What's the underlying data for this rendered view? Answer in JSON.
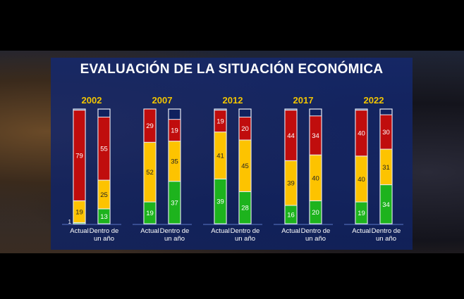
{
  "chart_data": {
    "type": "bar",
    "stacked": true,
    "title": "EVALUACIÓN DE LA SITUACIÓN ECONÓMICA",
    "groups": [
      "2002",
      "2007",
      "2012",
      "2017",
      "2022"
    ],
    "categories": [
      "Actual",
      "Dentro de un año"
    ],
    "category_label_lines": [
      [
        "Actual"
      ],
      [
        "Dentro de",
        "un año"
      ]
    ],
    "ylim": [
      0,
      100
    ],
    "colors": {
      "green": "#1db31d",
      "yellow": "#fdc300",
      "red": "#c00d0d",
      "empty": "#10215e",
      "title": "#ffffff",
      "year": "#f2c500"
    },
    "series": [
      {
        "color_key": "green",
        "values": [
          [
            1,
            13
          ],
          [
            19,
            37
          ],
          [
            39,
            28
          ],
          [
            16,
            20
          ],
          [
            19,
            34
          ]
        ]
      },
      {
        "color_key": "yellow",
        "values": [
          [
            19,
            25
          ],
          [
            52,
            35
          ],
          [
            41,
            45
          ],
          [
            39,
            40
          ],
          [
            40,
            31
          ]
        ]
      },
      {
        "color_key": "red",
        "values": [
          [
            79,
            55
          ],
          [
            29,
            19
          ],
          [
            19,
            20
          ],
          [
            44,
            34
          ],
          [
            40,
            30
          ]
        ]
      }
    ]
  }
}
